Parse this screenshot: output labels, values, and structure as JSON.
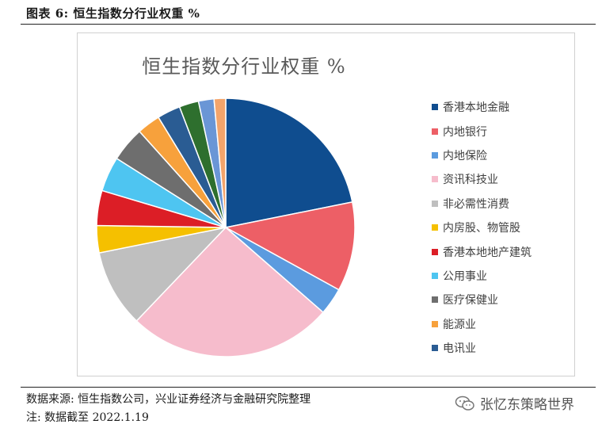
{
  "figure": {
    "title": "图表 6:  恒生指数分行业权重 %",
    "source": "数据来源:  恒生指数公司，兴业证券经济与金融研究院整理",
    "note": "注:  数据截至 2022.1.19",
    "watermark": "张忆东策略世界",
    "watermark_icon": "wechat-icon"
  },
  "chart_data": {
    "type": "pie",
    "title": "恒生指数分行业权重 %",
    "legend_position": "right",
    "slices": [
      {
        "label": "香港本地金融",
        "value": 22.5,
        "color": "#0f4d8f"
      },
      {
        "label": "内地银行",
        "value": 11.5,
        "color": "#ed5f66"
      },
      {
        "label": "内地保险",
        "value": 3.5,
        "color": "#5b9bdf"
      },
      {
        "label": "资讯科技业",
        "value": 26.5,
        "color": "#f6bccc"
      },
      {
        "label": "非必需性消费",
        "value": 10.0,
        "color": "#bfbfbf"
      },
      {
        "label": "内房股、物管股",
        "value": 3.5,
        "color": "#f5c000"
      },
      {
        "label": "香港本地地产建筑",
        "value": 4.5,
        "color": "#dc1e26"
      },
      {
        "label": "公用事业",
        "value": 4.5,
        "color": "#4ec5f1"
      },
      {
        "label": "医疗保健业",
        "value": 4.5,
        "color": "#6e6e6e"
      },
      {
        "label": "能源业",
        "value": 3.0,
        "color": "#f7a13c"
      },
      {
        "label": "电讯业",
        "value": 3.0,
        "color": "#2a5c93"
      },
      {
        "label": "",
        "value": 2.5,
        "color": "#2e6f2e"
      },
      {
        "label": "",
        "value": 2.0,
        "color": "#6a96d6"
      },
      {
        "label": "",
        "value": 1.5,
        "color": "#f3a46b"
      }
    ]
  }
}
